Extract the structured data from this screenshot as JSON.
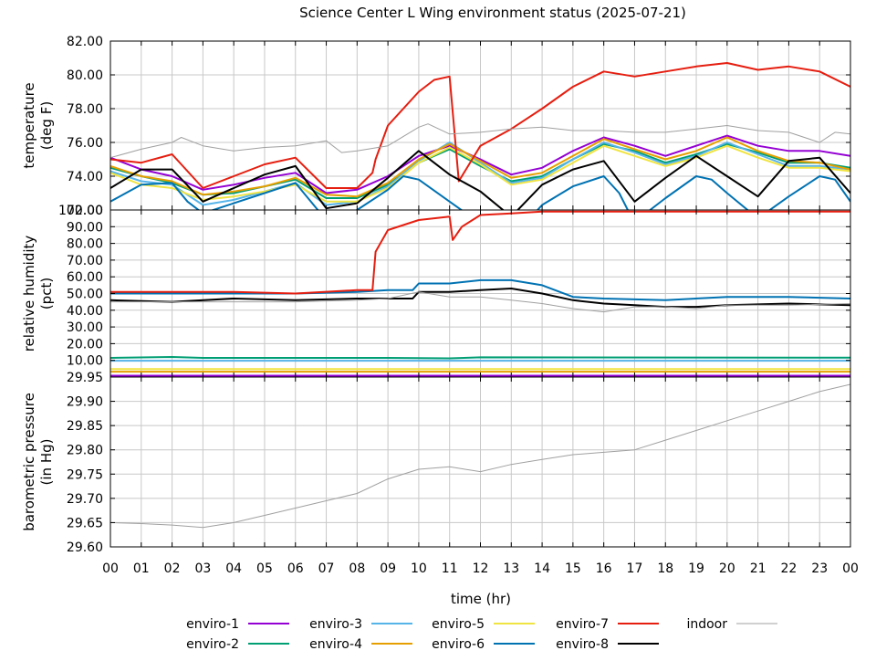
{
  "chart_data": {
    "type": "line",
    "title": "Science Center L Wing environment status (2025-07-21)",
    "xlabel": "time (hr)",
    "x_ticks": [
      "00",
      "01",
      "02",
      "03",
      "04",
      "05",
      "06",
      "07",
      "08",
      "09",
      "10",
      "11",
      "12",
      "13",
      "14",
      "15",
      "16",
      "17",
      "18",
      "19",
      "20",
      "21",
      "22",
      "23",
      "00"
    ],
    "xlim": [
      0,
      24
    ],
    "grid": true,
    "legend_position": "bottom",
    "series_styles": [
      {
        "name": "enviro-1",
        "color": "#9400d3"
      },
      {
        "name": "enviro-2",
        "color": "#009e73"
      },
      {
        "name": "enviro-3",
        "color": "#56b4e9"
      },
      {
        "name": "enviro-4",
        "color": "#e69f00"
      },
      {
        "name": "enviro-5",
        "color": "#f0e442"
      },
      {
        "name": "enviro-6",
        "color": "#0072b2"
      },
      {
        "name": "enviro-7",
        "color": "#e51e10"
      },
      {
        "name": "enviro-8",
        "color": "#000000"
      },
      {
        "name": "indoor",
        "color": "#a0a0a0"
      }
    ],
    "panels": [
      {
        "ylabel_lines": [
          "temperature",
          "(deg F)"
        ],
        "ylim": [
          72,
          82
        ],
        "yticks": [
          "72.00",
          "74.00",
          "76.00",
          "78.00",
          "80.00",
          "82.00"
        ],
        "series": [
          {
            "name": "enviro-1",
            "x": [
              0,
              1,
              2,
              3,
              4,
              5,
              6,
              7,
              8,
              9,
              10,
              11,
              12,
              13,
              14,
              15,
              16,
              17,
              18,
              19,
              20,
              21,
              22,
              23,
              24
            ],
            "y": [
              75.1,
              74.4,
              74.0,
              73.2,
              73.5,
              73.9,
              74.2,
              73.0,
              73.2,
              74.0,
              75.2,
              75.8,
              75.0,
              74.1,
              74.5,
              75.5,
              76.3,
              75.8,
              75.2,
              75.8,
              76.4,
              75.8,
              75.5,
              75.5,
              75.2
            ]
          },
          {
            "name": "enviro-2",
            "x": [
              0,
              1,
              2,
              3,
              4,
              5,
              6,
              7,
              8,
              9,
              10,
              11,
              12,
              13,
              14,
              15,
              16,
              17,
              18,
              19,
              20,
              21,
              22,
              23,
              24
            ],
            "y": [
              74.5,
              74.0,
              73.6,
              72.9,
              73.0,
              73.4,
              73.8,
              72.7,
              72.7,
              73.5,
              74.8,
              75.6,
              74.6,
              73.7,
              74.0,
              75.0,
              75.9,
              75.5,
              74.8,
              75.3,
              75.9,
              75.4,
              74.8,
              74.8,
              74.5
            ]
          },
          {
            "name": "enviro-3",
            "x": [
              0,
              1,
              2,
              3,
              4,
              5,
              6,
              7,
              8,
              9,
              10,
              11,
              12,
              13,
              14,
              15,
              16,
              17,
              18,
              19,
              20,
              21,
              22,
              23,
              24
            ],
            "y": [
              74.3,
              73.7,
              73.5,
              72.3,
              72.6,
              73.1,
              73.6,
              72.3,
              72.5,
              73.4,
              74.9,
              76.0,
              74.8,
              73.6,
              73.9,
              75.0,
              76.0,
              75.4,
              74.7,
              75.2,
              76.0,
              75.3,
              74.6,
              74.6,
              74.4
            ]
          },
          {
            "name": "enviro-4",
            "x": [
              0,
              1,
              2,
              3,
              4,
              5,
              6,
              7,
              8,
              9,
              10,
              11,
              12,
              13,
              14,
              15,
              16,
              17,
              18,
              19,
              20,
              21,
              22,
              23,
              24
            ],
            "y": [
              74.6,
              74.0,
              73.7,
              72.9,
              73.1,
              73.4,
              73.9,
              72.9,
              72.8,
              73.6,
              75.0,
              75.9,
              74.9,
              73.9,
              74.2,
              75.2,
              76.2,
              75.6,
              75.0,
              75.5,
              76.3,
              75.5,
              74.9,
              74.8,
              74.4
            ]
          },
          {
            "name": "enviro-5",
            "x": [
              0,
              1,
              2,
              3,
              4,
              5,
              6,
              7,
              8,
              9,
              10,
              11,
              12,
              13,
              14,
              15,
              16,
              17,
              18,
              19,
              20,
              21,
              22,
              23,
              24
            ],
            "y": [
              74.2,
              73.5,
              73.3,
              72.6,
              72.8,
              73.1,
              73.5,
              72.5,
              72.5,
              73.3,
              74.8,
              75.7,
              74.7,
              73.5,
              73.8,
              74.8,
              75.8,
              75.2,
              74.6,
              75.1,
              75.8,
              75.1,
              74.5,
              74.5,
              74.3
            ]
          },
          {
            "name": "enviro-6",
            "x": [
              0,
              0.5,
              1,
              2,
              2.5,
              3,
              4,
              5,
              6,
              7,
              7.5,
              8,
              9,
              9.5,
              10,
              11,
              12,
              12.5,
              13,
              14,
              15,
              16,
              16.5,
              17,
              17.5,
              18,
              19,
              19.5,
              20,
              21,
              22,
              23,
              23.5,
              24
            ],
            "y": [
              72.5,
              73.0,
              73.5,
              73.6,
              72.5,
              71.8,
              72.4,
              73.0,
              73.6,
              71.4,
              71.6,
              72.0,
              73.2,
              74.0,
              73.8,
              72.5,
              71.2,
              70.5,
              70.3,
              72.3,
              73.4,
              74.0,
              73.0,
              71.2,
              72.0,
              72.7,
              74.0,
              73.8,
              73.0,
              71.5,
              72.8,
              74.0,
              73.8,
              72.5
            ]
          },
          {
            "name": "enviro-7",
            "x": [
              0,
              1,
              2,
              3,
              4,
              5,
              6,
              7,
              8,
              8.5,
              8.6,
              9,
              10,
              10.5,
              11,
              11.3,
              12,
              13,
              14,
              15,
              16,
              17,
              18,
              19,
              20,
              21,
              22,
              23,
              24
            ],
            "y": [
              75.0,
              74.8,
              75.3,
              73.3,
              74.0,
              74.7,
              75.1,
              73.3,
              73.3,
              74.2,
              75.0,
              77.0,
              79.0,
              79.7,
              79.9,
              73.7,
              75.8,
              76.8,
              78.0,
              79.3,
              80.2,
              79.9,
              80.2,
              80.5,
              80.7,
              80.3,
              80.5,
              80.2,
              79.3
            ]
          },
          {
            "name": "enviro-8",
            "x": [
              0,
              1,
              2,
              3,
              4,
              5,
              6,
              7,
              8,
              9,
              10,
              11,
              12,
              13,
              14,
              15,
              16,
              17,
              18,
              19,
              20,
              21,
              22,
              23,
              24
            ],
            "y": [
              73.3,
              74.4,
              74.4,
              72.5,
              73.3,
              74.1,
              74.6,
              72.1,
              72.4,
              73.9,
              75.5,
              74.1,
              73.1,
              71.6,
              73.5,
              74.4,
              74.9,
              72.5,
              73.9,
              75.2,
              74.0,
              72.8,
              74.9,
              75.1,
              73.0
            ]
          },
          {
            "name": "indoor",
            "x": [
              0,
              1,
              2,
              2.3,
              3,
              4,
              5,
              6,
              7,
              7.5,
              8,
              9,
              10,
              10.3,
              11,
              12,
              13,
              14,
              15,
              16,
              17,
              18,
              19,
              20,
              21,
              22,
              23,
              23.5,
              24
            ],
            "y": [
              75.1,
              75.6,
              76.0,
              76.3,
              75.8,
              75.5,
              75.7,
              75.8,
              76.1,
              75.4,
              75.5,
              75.8,
              76.9,
              77.1,
              76.5,
              76.6,
              76.8,
              76.9,
              76.7,
              76.7,
              76.6,
              76.6,
              76.8,
              77.0,
              76.7,
              76.6,
              76.0,
              76.6,
              76.5
            ]
          }
        ]
      },
      {
        "ylabel_lines": [
          "relative humidity",
          "(pct)"
        ],
        "ylim": [
          0,
          100
        ],
        "yticks": [
          "10.00",
          "20.00",
          "30.00",
          "40.00",
          "50.00",
          "60.00",
          "70.00",
          "80.00",
          "90.00",
          "100.00"
        ],
        "series": [
          {
            "name": "enviro-1",
            "x": [
              0,
              24
            ],
            "y": [
              0.8,
              0.8
            ]
          },
          {
            "name": "enviro-2",
            "x": [
              0,
              2,
              3,
              9,
              11,
              12,
              24
            ],
            "y": [
              11.5,
              12,
              11.5,
              11.5,
              11.2,
              11.8,
              11.6
            ]
          },
          {
            "name": "enviro-3",
            "x": [
              0,
              24
            ],
            "y": [
              9.8,
              9.8
            ]
          },
          {
            "name": "enviro-4",
            "x": [
              0,
              24
            ],
            "y": [
              3.2,
              3.2
            ]
          },
          {
            "name": "enviro-5",
            "x": [
              0,
              24
            ],
            "y": [
              4.8,
              4.8
            ]
          },
          {
            "name": "enviro-6",
            "x": [
              0,
              2,
              4,
              6,
              8,
              9,
              9.8,
              10,
              11,
              12,
              13,
              14,
              15,
              16,
              18,
              20,
              22,
              24
            ],
            "y": [
              50,
              50,
              50,
              50,
              51,
              52,
              52,
              56,
              56,
              58,
              58,
              55,
              48,
              47,
              46,
              48,
              48,
              47
            ]
          },
          {
            "name": "enviro-7",
            "x": [
              0,
              2,
              4,
              6,
              8,
              8.5,
              8.6,
              9,
              10,
              11,
              11.1,
              11.4,
              12,
              13,
              14,
              16,
              18,
              20,
              22,
              24
            ],
            "y": [
              51,
              51,
              51,
              50,
              52,
              52,
              75,
              88,
              94,
              96,
              82,
              90,
              97,
              98,
              99,
              99,
              99,
              99,
              99,
              99
            ]
          },
          {
            "name": "enviro-8",
            "x": [
              0,
              2,
              4,
              6,
              8,
              9,
              9.8,
              10,
              11,
              12,
              13,
              14,
              15,
              16,
              17,
              18,
              19,
              20,
              22,
              24
            ],
            "y": [
              46,
              45,
              47,
              46,
              47,
              47,
              47,
              51,
              51,
              52,
              53,
              50,
              46,
              44,
              43,
              42,
              42,
              43,
              44,
              43
            ]
          },
          {
            "name": "indoor",
            "x": [
              0,
              2,
              4,
              6,
              8,
              9,
              10,
              11,
              12,
              13,
              14,
              15,
              16,
              17,
              18,
              19,
              20,
              22,
              24
            ],
            "y": [
              45,
              45,
              45,
              45,
              46,
              47,
              51,
              48,
              48,
              46,
              44,
              41,
              39,
              42,
              42,
              41,
              43,
              43,
              44
            ]
          }
        ]
      },
      {
        "ylabel_lines": [
          "barometric pressure",
          "(in Hg)"
        ],
        "ylim": [
          29.6,
          29.95
        ],
        "yticks": [
          "29.60",
          "29.65",
          "29.70",
          "29.75",
          "29.80",
          "29.85",
          "29.90",
          "29.95"
        ],
        "series": [
          {
            "name": "indoor",
            "x": [
              0,
              1,
              2,
              3,
              4,
              5,
              6,
              7,
              8,
              9,
              10,
              11,
              12,
              13,
              14,
              15,
              16,
              17,
              18,
              19,
              20,
              21,
              22,
              23,
              24
            ],
            "y": [
              29.65,
              29.648,
              29.645,
              29.64,
              29.65,
              29.665,
              29.68,
              29.695,
              29.71,
              29.74,
              29.76,
              29.765,
              29.755,
              29.77,
              29.78,
              29.79,
              29.795,
              29.8,
              29.82,
              29.84,
              29.86,
              29.88,
              29.9,
              29.92,
              29.935
            ]
          }
        ]
      }
    ]
  }
}
